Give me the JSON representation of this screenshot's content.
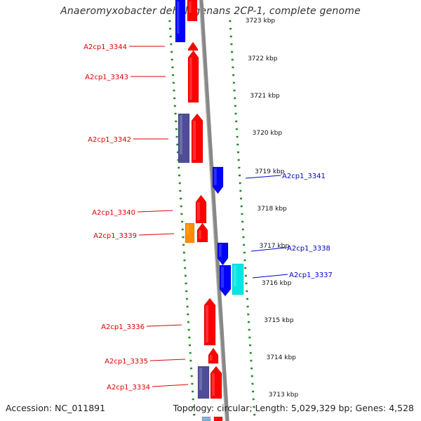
{
  "title": "Anaeromyxobacter dehalogenans 2CP-1, complete genome",
  "accession": "Accession: NC_011891",
  "genome_info": "Topology: circular; Length: 5,029,329 bp; Genes: 4,528",
  "colors": {
    "forward": "#ff0000",
    "reverse": "#0000ff",
    "purple": "#4d4d99",
    "orange": "#ff8c00",
    "cyan": "#00e5e5",
    "backbone": "#888888",
    "ticks": "#228b22",
    "label_fwd": "#dd0000",
    "label_rev": "#0000cc"
  },
  "scale_labels": [
    "3723 kbp",
    "3722 kbp",
    "3721 kbp",
    "3720 kbp",
    "3719 kbp",
    "3718 kbp",
    "3717 kbp",
    "3716 kbp",
    "3715 kbp",
    "3714 kbp",
    "3713 kbp"
  ],
  "gene_labels": [
    {
      "text": "A2cp1_3344",
      "strand": "forward"
    },
    {
      "text": "A2cp1_3343",
      "strand": "forward"
    },
    {
      "text": "A2cp1_3342",
      "strand": "forward"
    },
    {
      "text": "A2cp1_3341",
      "strand": "reverse"
    },
    {
      "text": "A2cp1_3340",
      "strand": "forward"
    },
    {
      "text": "A2cp1_3339",
      "strand": "forward"
    },
    {
      "text": "A2cp1_3338",
      "strand": "reverse"
    },
    {
      "text": "A2cp1_3337",
      "strand": "reverse"
    },
    {
      "text": "A2cp1_3336",
      "strand": "forward"
    },
    {
      "text": "A2cp1_3335",
      "strand": "forward"
    },
    {
      "text": "A2cp1_3334",
      "strand": "forward"
    }
  ]
}
